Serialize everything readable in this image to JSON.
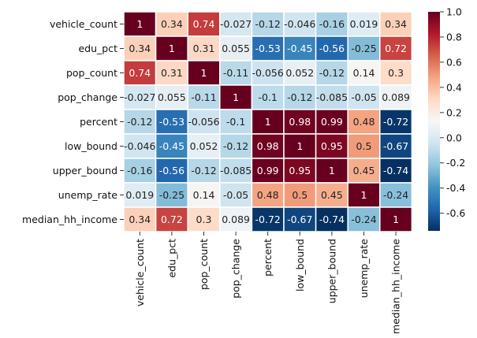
{
  "chart_data": {
    "type": "heatmap",
    "title": "",
    "xlabel": "",
    "ylabel": "",
    "rows": [
      "vehicle_count",
      "edu_pct",
      "pop_count",
      "pop_change",
      "percent",
      "low_bound",
      "upper_bound",
      "unemp_rate",
      "median_hh_income"
    ],
    "columns": [
      "vehicle_count",
      "edu_pct",
      "pop_count",
      "pop_change",
      "percent",
      "low_bound",
      "upper_bound",
      "unemp_rate",
      "median_hh_income"
    ],
    "values": [
      [
        1,
        0.34,
        0.74,
        -0.027,
        -0.12,
        -0.046,
        -0.16,
        0.019,
        0.34
      ],
      [
        0.34,
        1,
        0.31,
        0.055,
        -0.53,
        -0.45,
        -0.56,
        -0.25,
        0.72
      ],
      [
        0.74,
        0.31,
        1,
        -0.11,
        -0.056,
        0.052,
        -0.12,
        0.14,
        0.3
      ],
      [
        -0.027,
        0.055,
        -0.11,
        1,
        -0.1,
        -0.12,
        -0.085,
        -0.05,
        0.089
      ],
      [
        -0.12,
        -0.53,
        -0.056,
        -0.1,
        1,
        0.98,
        0.99,
        0.48,
        -0.72
      ],
      [
        -0.046,
        -0.45,
        0.052,
        -0.12,
        0.98,
        1,
        0.95,
        0.5,
        -0.67
      ],
      [
        -0.16,
        -0.56,
        -0.12,
        -0.085,
        0.99,
        0.95,
        1,
        0.45,
        -0.74
      ],
      [
        0.019,
        -0.25,
        0.14,
        -0.05,
        0.48,
        0.5,
        0.45,
        1,
        -0.24
      ],
      [
        0.34,
        0.72,
        0.3,
        0.089,
        -0.72,
        -0.67,
        -0.74,
        -0.24,
        1
      ]
    ],
    "colorbar": {
      "range": [
        -0.74,
        1.0
      ],
      "ticks": [
        "1.0",
        "0.8",
        "0.6",
        "0.4",
        "0.2",
        "0.0",
        "-0.2",
        "-0.4",
        "-0.6"
      ],
      "tick_values": [
        1.0,
        0.8,
        0.6,
        0.4,
        0.2,
        0.0,
        -0.2,
        -0.4,
        -0.6
      ]
    },
    "colormap": "RdBu_r",
    "annotations": true,
    "grid": false,
    "legend": "colorbar-right"
  }
}
